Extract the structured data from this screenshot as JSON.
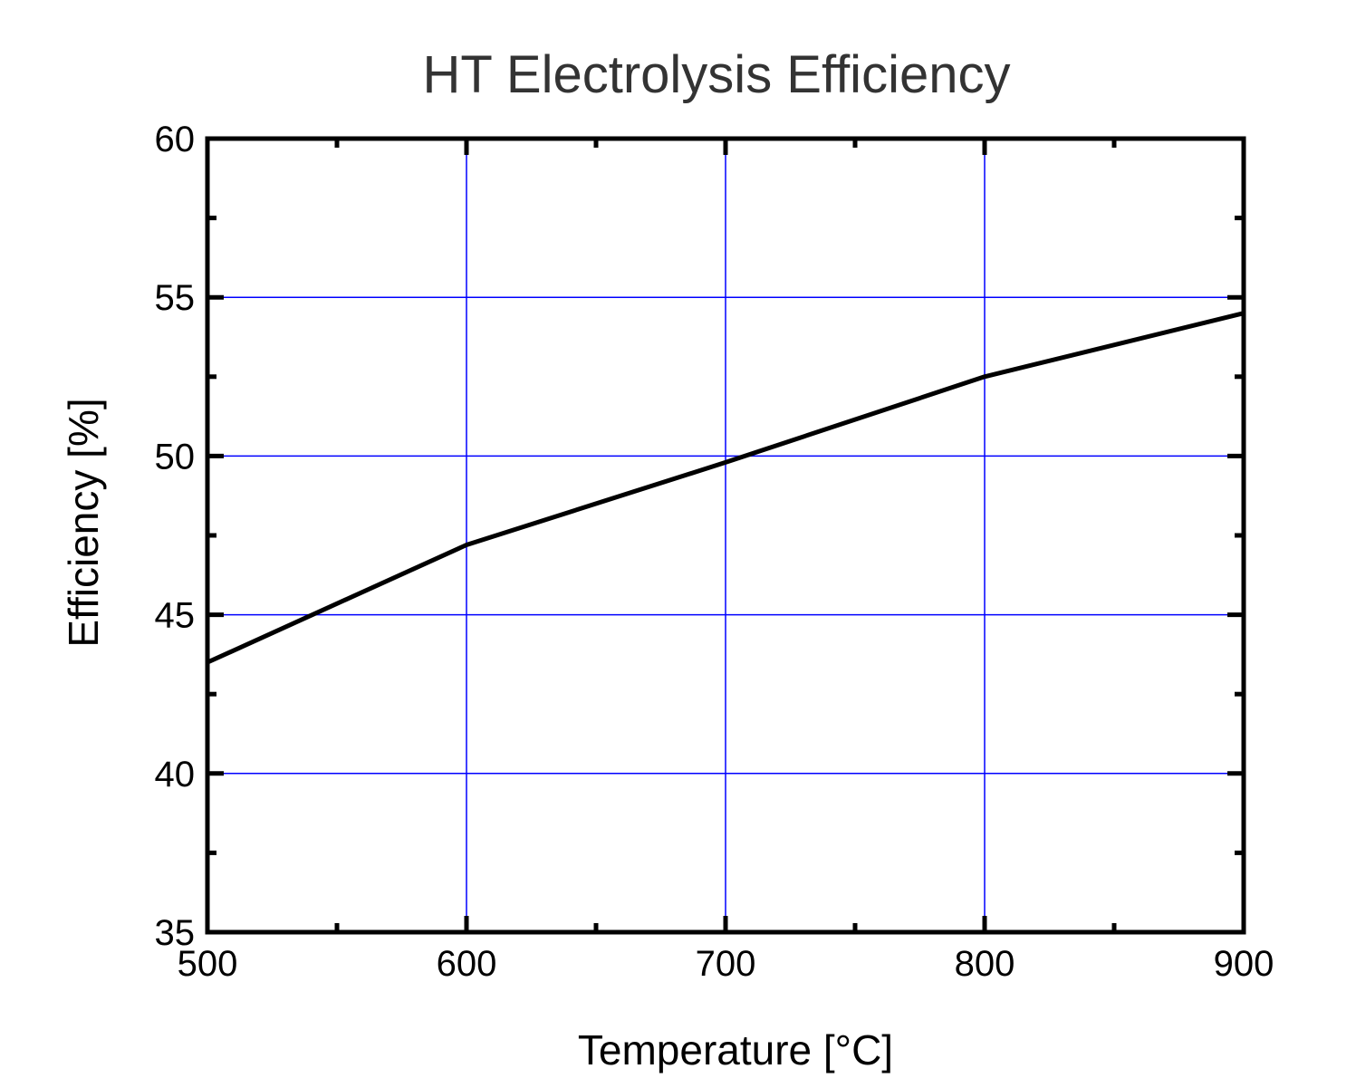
{
  "chart_data": {
    "type": "line",
    "title": "HT Electrolysis Efficiency",
    "xlabel": "Temperature [°C]",
    "xlabel_parts": {
      "pre": "Temperature [",
      "sup": "o",
      "post": "C]"
    },
    "ylabel": "Efficiency [%]",
    "xlim": [
      500,
      900
    ],
    "ylim": [
      35,
      60
    ],
    "xticks": [
      500,
      600,
      700,
      800,
      900
    ],
    "yticks": [
      35,
      40,
      45,
      50,
      55,
      60
    ],
    "x_minor_step": 50,
    "y_minor_step": 2.5,
    "grid": true,
    "grid_color": "#0000ff",
    "line_color": "#000000",
    "series": [
      {
        "name": "Efficiency",
        "x": [
          500,
          600,
          700,
          800,
          900
        ],
        "y": [
          43.5,
          47.2,
          49.8,
          52.5,
          54.5
        ]
      }
    ]
  }
}
